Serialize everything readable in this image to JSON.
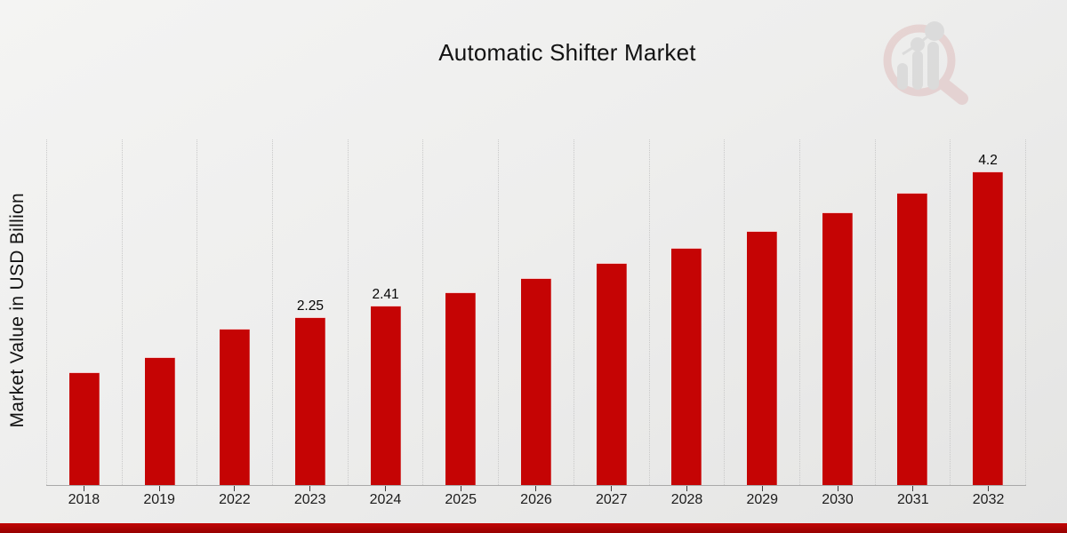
{
  "chart_data": {
    "type": "bar",
    "title": "Automatic Shifter Market",
    "xlabel": "",
    "ylabel": "Market Value in USD Billion",
    "categories": [
      "2018",
      "2019",
      "2022",
      "2023",
      "2024",
      "2025",
      "2026",
      "2027",
      "2028",
      "2029",
      "2030",
      "2031",
      "2032"
    ],
    "values": [
      1.51,
      1.71,
      2.09,
      2.25,
      2.41,
      2.58,
      2.77,
      2.97,
      3.18,
      3.41,
      3.66,
      3.92,
      4.2
    ],
    "bar_labels": [
      "",
      "",
      "",
      "2.25",
      "2.41",
      "",
      "",
      "",
      "",
      "",
      "",
      "",
      "4.2"
    ],
    "units": "USD Billion",
    "ylim": [
      0,
      4.63
    ],
    "grid": "vertical-dotted",
    "legend": "none",
    "bar_color": "#c50404"
  },
  "watermark": {
    "name": "market-research-future-logo"
  },
  "colors": {
    "bar": "#c50404",
    "footer_top": "#c10505",
    "footer_bottom": "#970101",
    "background_light": "#f4f4f3",
    "background_dark": "#e4e4e3",
    "axis_line": "#a9a9a9",
    "gridline": "#c9c9c9",
    "text": "#121212"
  }
}
